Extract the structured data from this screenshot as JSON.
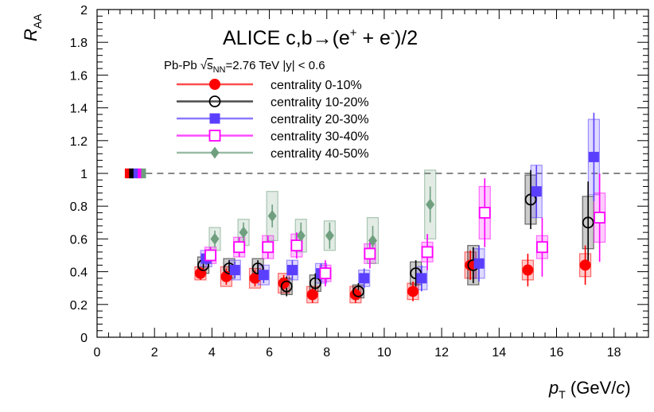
{
  "chart_data": {
    "type": "scatter",
    "title_parts": {
      "prefix": "ALICE c,b",
      "arrow": "→",
      "open": "(e",
      "plus_sup": "+",
      "mid": " + e",
      "minus_sup": "-",
      "close": ")/2"
    },
    "subtitle_parts": {
      "system": "Pb-Pb ",
      "sqrt": "√",
      "s": "s",
      "nn": "NN",
      "rest": "=2.76 TeV |y| < 0.6"
    },
    "ylabel_parts": {
      "main": "R",
      "sub": "AA"
    },
    "xlabel_parts": {
      "main": "p",
      "sub": "T",
      "unit_open": " (GeV/",
      "unit_c": "c",
      "unit_close": ")"
    },
    "xlim": [
      0,
      19.2
    ],
    "ylim": [
      0,
      2
    ],
    "x_ticks": [
      "0",
      "2",
      "4",
      "6",
      "8",
      "10",
      "12",
      "14",
      "16",
      "18"
    ],
    "y_ticks": [
      "0",
      "0.2",
      "0.4",
      "0.6",
      "0.8",
      "1",
      "1.2",
      "1.4",
      "1.6",
      "1.8",
      "2"
    ],
    "reference_line": 1,
    "grid": false,
    "legend_position": "top-left",
    "series": [
      {
        "name": "centrality 0-10%",
        "color": "#ff0000",
        "marker": "filled-circle",
        "norm_x": 1.05,
        "x": [
          3.6,
          4.5,
          5.5,
          6.5,
          7.5,
          9.0,
          11.0,
          13.0,
          15.0,
          17.0
        ],
        "y": [
          0.39,
          0.37,
          0.36,
          0.33,
          0.26,
          0.26,
          0.28,
          0.44,
          0.41,
          0.44
        ],
        "yerr": [
          0.04,
          0.05,
          0.05,
          0.05,
          0.05,
          0.05,
          0.06,
          0.09,
          0.1,
          0.12
        ],
        "sys": [
          0.04,
          0.06,
          0.06,
          0.06,
          0.05,
          0.05,
          0.05,
          0.08,
          0.06,
          0.07
        ]
      },
      {
        "name": "centrality 10-20%",
        "color": "#000000",
        "marker": "open-circle",
        "norm_x": 1.2,
        "x": [
          3.7,
          4.6,
          5.6,
          6.6,
          7.6,
          9.1,
          11.1,
          13.1,
          15.1,
          17.1
        ],
        "y": [
          0.44,
          0.42,
          0.42,
          0.31,
          0.33,
          0.28,
          0.39,
          0.44,
          0.84,
          0.7
        ],
        "yerr": [
          0.05,
          0.05,
          0.05,
          0.06,
          0.06,
          0.05,
          0.08,
          0.11,
          0.18,
          0.25
        ],
        "sys": [
          0.05,
          0.06,
          0.06,
          0.05,
          0.05,
          0.04,
          0.07,
          0.12,
          0.15,
          0.16
        ]
      },
      {
        "name": "centrality 20-30%",
        "color": "#5a3fff",
        "marker": "filled-square",
        "norm_x": 1.35,
        "x": [
          3.8,
          4.8,
          5.8,
          6.8,
          7.8,
          9.3,
          11.3,
          13.3,
          15.3,
          17.3
        ],
        "y": [
          0.48,
          0.41,
          0.38,
          0.41,
          0.39,
          0.36,
          0.36,
          0.45,
          0.89,
          1.1
        ],
        "yerr": [
          0.04,
          0.05,
          0.05,
          0.06,
          0.06,
          0.06,
          0.08,
          0.11,
          0.16,
          0.27
        ],
        "sys": [
          0.05,
          0.06,
          0.06,
          0.06,
          0.06,
          0.05,
          0.07,
          0.09,
          0.16,
          0.23
        ]
      },
      {
        "name": "centrality 30-40%",
        "color": "#ff00ff",
        "marker": "open-square",
        "norm_x": 1.5,
        "x": [
          3.95,
          4.95,
          5.95,
          6.95,
          7.95,
          9.5,
          11.5,
          13.5,
          15.5,
          17.5
        ],
        "y": [
          0.5,
          0.55,
          0.55,
          0.56,
          0.39,
          0.51,
          0.52,
          0.76,
          0.55,
          0.73
        ],
        "yerr": [
          0.05,
          0.06,
          0.07,
          0.08,
          0.08,
          0.09,
          0.11,
          0.21,
          0.18,
          0.27
        ],
        "sys": [
          0.05,
          0.06,
          0.07,
          0.07,
          0.05,
          0.06,
          0.06,
          0.16,
          0.07,
          0.15
        ]
      },
      {
        "name": "centrality 40-50%",
        "color": "#6f9f7f",
        "marker": "filled-diamond",
        "norm_x": 1.62,
        "x": [
          4.1,
          5.1,
          6.1,
          7.1,
          8.1,
          9.6,
          11.6
        ],
        "y": [
          0.6,
          0.64,
          0.74,
          0.62,
          0.62,
          0.59,
          0.81
        ],
        "yerr": [
          0.05,
          0.06,
          0.07,
          0.08,
          0.08,
          0.09,
          0.11
        ],
        "sys": [
          0.07,
          0.08,
          0.15,
          0.1,
          0.09,
          0.14,
          0.21
        ]
      }
    ]
  }
}
